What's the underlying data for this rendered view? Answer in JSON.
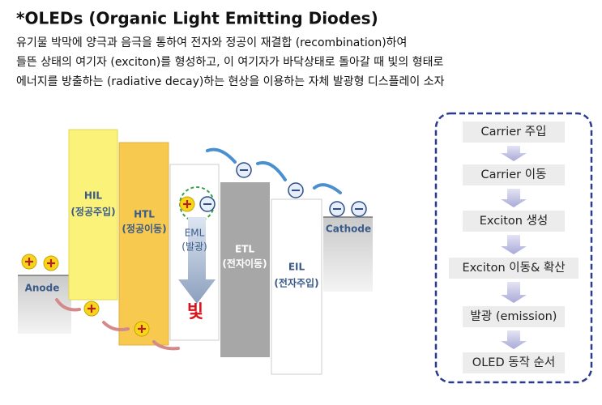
{
  "header": {
    "title": "*OLEDs (Organic Light Emitting Diodes)",
    "description": [
      "유기물 박막에 양극과 음극을 통하여 전자와 정공이 재결합 (recombination)하여",
      "들뜬 상태의 여기자 (exciton)를 형성하고, 이 여기자가 바닥상태로 돌아갈 때 빛의 형태로",
      "에너지를 방출하는 (radiative decay)하는 현상을 이용하는 자체 발광형 디스플레이 소자"
    ]
  },
  "layers": [
    {
      "label": "Anode"
    },
    {
      "label": "HIL",
      "sublabel": "(정공주입)"
    },
    {
      "label": "HTL",
      "sublabel": "(정공이동)"
    },
    {
      "label": "EML",
      "sublabel": "(발광)",
      "emission": "빛"
    },
    {
      "label": "ETL",
      "sublabel": "(전자이동)"
    },
    {
      "label": "EIL",
      "sublabel": "(전자주입)"
    },
    {
      "label": "Cathode"
    }
  ],
  "flow": {
    "steps": [
      "Carrier 주입",
      "Carrier 이동",
      "Exciton 생성",
      "Exciton 이동& 확산",
      "발광 (emission)",
      "OLED 동작 순서"
    ]
  }
}
